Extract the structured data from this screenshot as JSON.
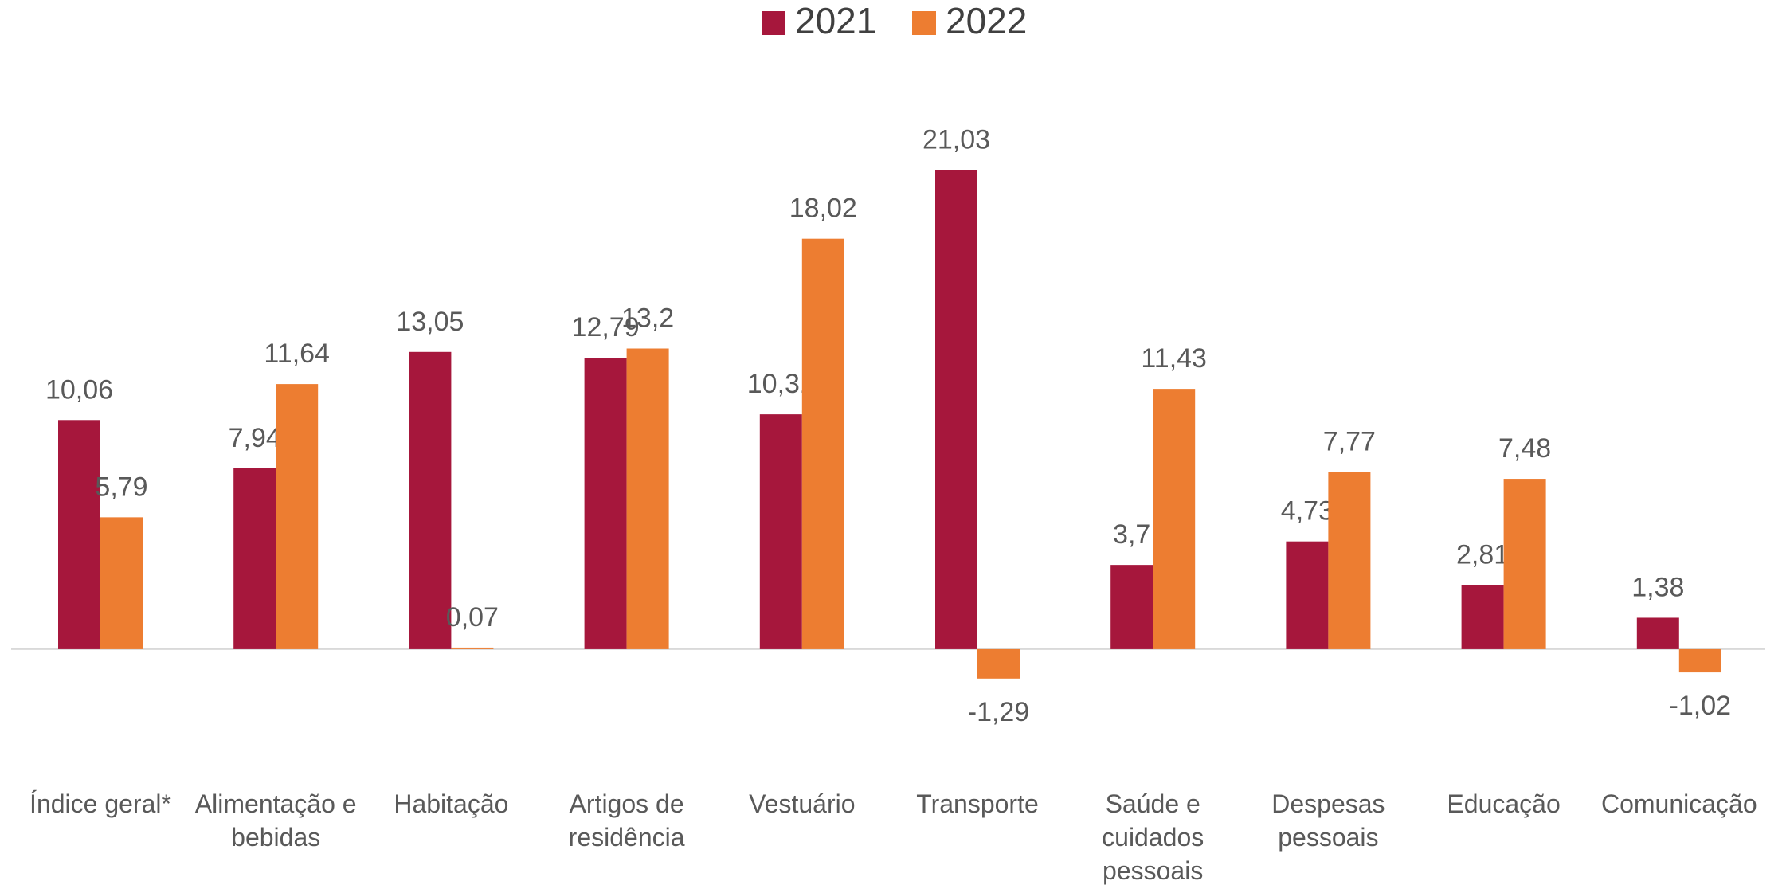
{
  "chart_data": {
    "type": "bar",
    "categories": [
      "Índice geral*",
      "Alimentação e bebidas",
      "Habitação",
      "Artigos de residência",
      "Vestuário",
      "Transporte",
      "Saúde e cuidados pessoais",
      "Despesas pessoais",
      "Educação",
      "Comunicação"
    ],
    "series": [
      {
        "name": "2021",
        "color": "#a6173c",
        "values": [
          10.06,
          7.94,
          13.05,
          12.79,
          10.31,
          21.03,
          3.7,
          4.73,
          2.81,
          1.38
        ],
        "value_labels": [
          "10,06",
          "7,94",
          "13,05",
          "12,79",
          "10,31",
          "21,03",
          "3,7",
          "4,73",
          "2,81",
          "1,38"
        ]
      },
      {
        "name": "2022",
        "color": "#ed7d31",
        "values": [
          5.79,
          11.64,
          0.07,
          13.2,
          18.02,
          -1.29,
          11.43,
          7.77,
          7.48,
          -1.02
        ],
        "value_labels": [
          "5,79",
          "11,64",
          "0,07",
          "13,2",
          "18,02",
          "-1,29",
          "11,43",
          "7,77",
          "7,48",
          "-1,02"
        ]
      }
    ],
    "ylim": [
      -3.5,
      23.5
    ],
    "legend": "top"
  }
}
